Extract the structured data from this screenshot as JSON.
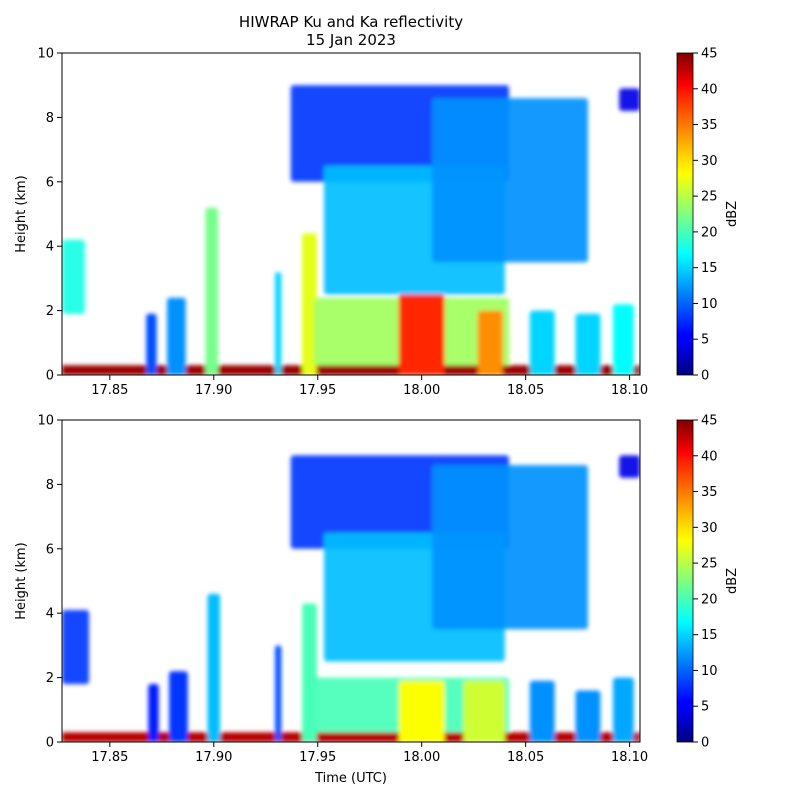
{
  "figure": {
    "title_line1": "HIWRAP Ku and Ka reflectivity",
    "title_line2": "15 Jan 2023"
  },
  "chart_data": [
    {
      "type": "heatmap",
      "panel": "top",
      "xlabel": "",
      "ylabel": "Height (km)",
      "xlim": [
        17.827,
        18.105
      ],
      "ylim": [
        0,
        10
      ],
      "x_ticks": [
        17.85,
        17.9,
        17.95,
        18.0,
        18.05,
        18.1
      ],
      "x_tick_labels": [
        "17.85",
        "17.90",
        "17.95",
        "18.00",
        "18.05",
        "18.10"
      ],
      "y_ticks": [
        0,
        2,
        4,
        6,
        8,
        10
      ],
      "y_tick_labels": [
        "0",
        "2",
        "4",
        "6",
        "8",
        "10"
      ],
      "colorbar": {
        "label": "dBZ",
        "range": [
          0,
          45
        ],
        "ticks": [
          0,
          5,
          10,
          15,
          20,
          25,
          30,
          35,
          40,
          45
        ],
        "tick_labels": [
          "0",
          "5",
          "10",
          "15",
          "20",
          "25",
          "30",
          "35",
          "40",
          "45"
        ],
        "colormap": "jet"
      },
      "features": [
        {
          "kind": "surface",
          "x": [
            17.827,
            18.105
          ],
          "top_km": 0.3,
          "dbz": 44
        },
        {
          "kind": "cloud",
          "x": [
            17.827,
            17.838
          ],
          "base_km": 1.9,
          "top_km": 4.2,
          "dbz": 18
        },
        {
          "kind": "column",
          "x": 17.87,
          "half_width": 0.0025,
          "top_km": 1.9,
          "dbz": 9
        },
        {
          "kind": "column",
          "x": 17.882,
          "half_width": 0.0045,
          "top_km": 2.4,
          "dbz": 12
        },
        {
          "kind": "column",
          "x": 17.899,
          "half_width": 0.003,
          "top_km": 5.2,
          "dbz": 22
        },
        {
          "kind": "column",
          "x": 17.931,
          "half_width": 0.0015,
          "top_km": 3.2,
          "dbz": 15
        },
        {
          "kind": "column",
          "x": 17.946,
          "half_width": 0.0035,
          "top_km": 4.4,
          "dbz": 27
        },
        {
          "kind": "cloud",
          "x": [
            17.937,
            18.042
          ],
          "base_km": 6.0,
          "top_km": 9.0,
          "dbz": 8
        },
        {
          "kind": "cloud",
          "x": [
            17.953,
            18.04
          ],
          "base_km": 2.5,
          "top_km": 6.5,
          "dbz": 14
        },
        {
          "kind": "cloud",
          "x": [
            18.005,
            18.08
          ],
          "base_km": 3.5,
          "top_km": 8.6,
          "dbz": 12
        },
        {
          "kind": "cloud",
          "x": [
            17.948,
            18.042
          ],
          "base_km": 0.3,
          "top_km": 2.4,
          "dbz": 24
        },
        {
          "kind": "column",
          "x": 18.0,
          "half_width": 0.011,
          "top_km": 2.5,
          "dbz": 39
        },
        {
          "kind": "column",
          "x": 18.033,
          "half_width": 0.006,
          "top_km": 2.0,
          "dbz": 34
        },
        {
          "kind": "column",
          "x": 18.058,
          "half_width": 0.006,
          "top_km": 2.0,
          "dbz": 15
        },
        {
          "kind": "column",
          "x": 18.08,
          "half_width": 0.006,
          "top_km": 1.9,
          "dbz": 15
        },
        {
          "kind": "column",
          "x": 18.097,
          "half_width": 0.005,
          "top_km": 2.2,
          "dbz": 17
        },
        {
          "kind": "cloud",
          "x": [
            18.095,
            18.105
          ],
          "base_km": 8.2,
          "top_km": 8.9,
          "dbz": 4
        }
      ]
    },
    {
      "type": "heatmap",
      "panel": "bottom",
      "xlabel": "Time (UTC)",
      "ylabel": "Height (km)",
      "xlim": [
        17.827,
        18.105
      ],
      "ylim": [
        0,
        10
      ],
      "x_ticks": [
        17.85,
        17.9,
        17.95,
        18.0,
        18.05,
        18.1
      ],
      "x_tick_labels": [
        "17.85",
        "17.90",
        "17.95",
        "18.00",
        "18.05",
        "18.10"
      ],
      "y_ticks": [
        0,
        2,
        4,
        6,
        8,
        10
      ],
      "y_tick_labels": [
        "0",
        "2",
        "4",
        "6",
        "8",
        "10"
      ],
      "colorbar": {
        "label": "dBZ",
        "range": [
          0,
          45
        ],
        "ticks": [
          0,
          5,
          10,
          15,
          20,
          25,
          30,
          35,
          40,
          45
        ],
        "tick_labels": [
          "0",
          "5",
          "10",
          "15",
          "20",
          "25",
          "30",
          "35",
          "40",
          "45"
        ],
        "colormap": "jet"
      },
      "features": [
        {
          "kind": "surface",
          "x": [
            17.827,
            18.105
          ],
          "top_km": 0.3,
          "dbz": 43
        },
        {
          "kind": "cloud",
          "x": [
            17.827,
            17.84
          ],
          "base_km": 1.8,
          "top_km": 4.1,
          "dbz": 8
        },
        {
          "kind": "column",
          "x": 17.871,
          "half_width": 0.0025,
          "top_km": 1.8,
          "dbz": 7
        },
        {
          "kind": "column",
          "x": 17.883,
          "half_width": 0.0045,
          "top_km": 2.2,
          "dbz": 8
        },
        {
          "kind": "column",
          "x": 17.9,
          "half_width": 0.003,
          "top_km": 4.6,
          "dbz": 14
        },
        {
          "kind": "column",
          "x": 17.931,
          "half_width": 0.0015,
          "top_km": 3.0,
          "dbz": 9
        },
        {
          "kind": "column",
          "x": 17.946,
          "half_width": 0.0035,
          "top_km": 4.3,
          "dbz": 20
        },
        {
          "kind": "cloud",
          "x": [
            17.937,
            18.042
          ],
          "base_km": 6.0,
          "top_km": 8.9,
          "dbz": 8
        },
        {
          "kind": "cloud",
          "x": [
            17.953,
            18.04
          ],
          "base_km": 2.5,
          "top_km": 6.5,
          "dbz": 14
        },
        {
          "kind": "cloud",
          "x": [
            18.005,
            18.08
          ],
          "base_km": 3.5,
          "top_km": 8.6,
          "dbz": 12
        },
        {
          "kind": "cloud",
          "x": [
            17.948,
            18.042
          ],
          "base_km": 0.3,
          "top_km": 2.0,
          "dbz": 20
        },
        {
          "kind": "column",
          "x": 18.0,
          "half_width": 0.011,
          "top_km": 1.9,
          "dbz": 28
        },
        {
          "kind": "column",
          "x": 18.03,
          "half_width": 0.01,
          "top_km": 1.9,
          "dbz": 26
        },
        {
          "kind": "column",
          "x": 18.058,
          "half_width": 0.006,
          "top_km": 1.9,
          "dbz": 12
        },
        {
          "kind": "column",
          "x": 18.08,
          "half_width": 0.006,
          "top_km": 1.6,
          "dbz": 12
        },
        {
          "kind": "column",
          "x": 18.097,
          "half_width": 0.005,
          "top_km": 2.0,
          "dbz": 13
        },
        {
          "kind": "cloud",
          "x": [
            18.095,
            18.105
          ],
          "base_km": 8.2,
          "top_km": 8.9,
          "dbz": 4
        }
      ]
    }
  ]
}
